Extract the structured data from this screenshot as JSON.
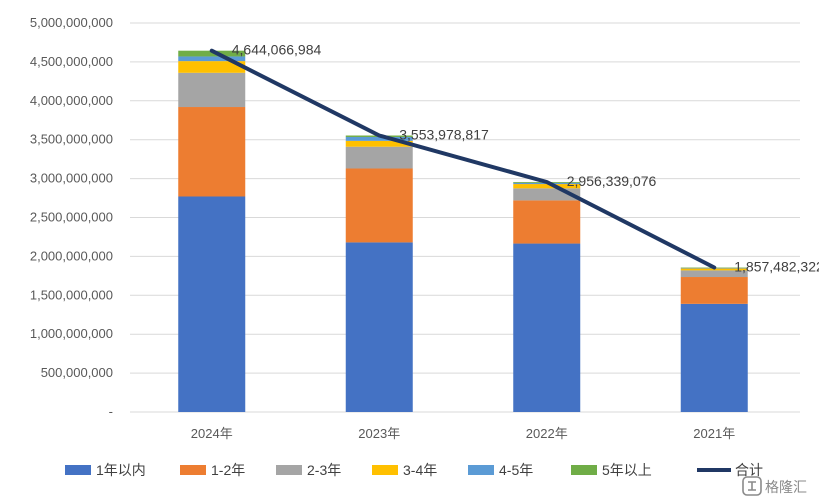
{
  "chart_data": {
    "type": "bar",
    "stacked": true,
    "categories": [
      "2024年",
      "2023年",
      "2022年",
      "2021年"
    ],
    "ylim": [
      0,
      5000000000
    ],
    "y_ticks": [
      "-",
      "500,000,000",
      "1,000,000,000",
      "1,500,000,000",
      "2,000,000,000",
      "2,500,000,000",
      "3,000,000,000",
      "3,500,000,000",
      "4,000,000,000",
      "4,500,000,000",
      "5,000,000,000"
    ],
    "grid": true,
    "legend_position": "bottom",
    "series": [
      {
        "name": "1年以内",
        "color": "#4472C4",
        "values": [
          2770000000,
          2180000000,
          2165000000,
          1390000000
        ]
      },
      {
        "name": "1-2年",
        "color": "#ED7D31",
        "values": [
          1150000000,
          950000000,
          555000000,
          345000000
        ]
      },
      {
        "name": "2-3年",
        "color": "#A5A5A5",
        "values": [
          440000000,
          280000000,
          155000000,
          85000000
        ]
      },
      {
        "name": "3-4年",
        "color": "#FFC000",
        "values": [
          150000000,
          75000000,
          55000000,
          25000000
        ]
      },
      {
        "name": "4-5年",
        "color": "#5B9BD5",
        "values": [
          60000000,
          50000000,
          16000000,
          7000000
        ]
      },
      {
        "name": "5年以上",
        "color": "#70AD47",
        "values": [
          74066984,
          18978817,
          10339076,
          5482322
        ]
      }
    ],
    "line": {
      "name": "合计",
      "color": "#203864",
      "values": [
        4644066984,
        3553978817,
        2956339076,
        1857482322
      ],
      "labels": [
        "4,644,066,984",
        "3,553,978,817",
        "2,956,339,076",
        "1,857,482,322"
      ]
    }
  },
  "watermark": {
    "text": "格隆汇",
    "icon": "glh-logo-icon"
  }
}
